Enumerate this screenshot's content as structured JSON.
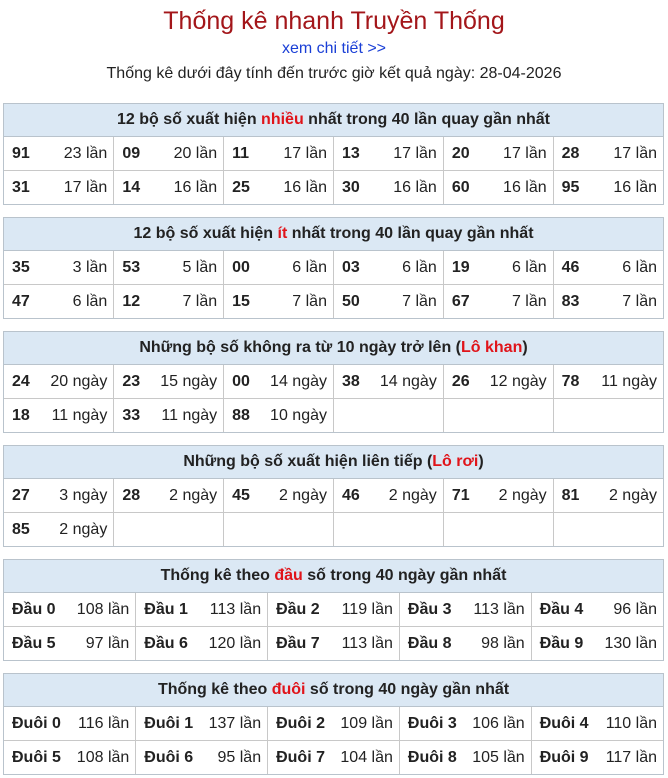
{
  "header": {
    "title": "Thống kê nhanh Truyền Thống",
    "link": "xem chi tiết >>",
    "subtitle": "Thống kê dưới đây tính đến trước giờ kết quả ngày: 28-04-2026"
  },
  "sections": [
    {
      "title": [
        "12 bộ số xuất hiện ",
        "nhiều",
        " nhất trong 40 lần quay gần nhất"
      ],
      "rows": [
        [
          [
            "91",
            "23 lần"
          ],
          [
            "09",
            "20 lần"
          ],
          [
            "11",
            "17 lần"
          ],
          [
            "13",
            "17 lần"
          ],
          [
            "20",
            "17 lần"
          ],
          [
            "28",
            "17 lần"
          ]
        ],
        [
          [
            "31",
            "17 lần"
          ],
          [
            "14",
            "16 lần"
          ],
          [
            "25",
            "16 lần"
          ],
          [
            "30",
            "16 lần"
          ],
          [
            "60",
            "16 lần"
          ],
          [
            "95",
            "16 lần"
          ]
        ]
      ]
    },
    {
      "title": [
        "12 bộ số xuất hiện ",
        "ít",
        " nhất trong 40 lần quay gần nhất"
      ],
      "rows": [
        [
          [
            "35",
            "3 lần"
          ],
          [
            "53",
            "5 lần"
          ],
          [
            "00",
            "6 lần"
          ],
          [
            "03",
            "6 lần"
          ],
          [
            "19",
            "6 lần"
          ],
          [
            "46",
            "6 lần"
          ]
        ],
        [
          [
            "47",
            "6 lần"
          ],
          [
            "12",
            "7 lần"
          ],
          [
            "15",
            "7 lần"
          ],
          [
            "50",
            "7 lần"
          ],
          [
            "67",
            "7 lần"
          ],
          [
            "83",
            "7 lần"
          ]
        ]
      ]
    },
    {
      "title": [
        "Những bộ số không ra từ 10 ngày trở lên (",
        "Lô khan",
        ")"
      ],
      "rows": [
        [
          [
            "24",
            "20 ngày"
          ],
          [
            "23",
            "15 ngày"
          ],
          [
            "00",
            "14 ngày"
          ],
          [
            "38",
            "14 ngày"
          ],
          [
            "26",
            "12 ngày"
          ],
          [
            "78",
            "11 ngày"
          ]
        ],
        [
          [
            "18",
            "11 ngày"
          ],
          [
            "33",
            "11 ngày"
          ],
          [
            "88",
            "10 ngày"
          ]
        ]
      ]
    },
    {
      "title": [
        "Những bộ số xuất hiện liên tiếp (",
        "Lô rơi",
        ")"
      ],
      "rows": [
        [
          [
            "27",
            "3 ngày"
          ],
          [
            "28",
            "2 ngày"
          ],
          [
            "45",
            "2 ngày"
          ],
          [
            "46",
            "2 ngày"
          ],
          [
            "71",
            "2 ngày"
          ],
          [
            "81",
            "2 ngày"
          ]
        ],
        [
          [
            "85",
            "2 ngày"
          ]
        ]
      ]
    },
    {
      "title": [
        "Thống kê theo ",
        "đầu",
        " số trong 40 ngày gần nhất"
      ],
      "rows": [
        [
          [
            "Đầu 0",
            "108 lần"
          ],
          [
            "Đầu 1",
            "113 lần"
          ],
          [
            "Đầu 2",
            "119 lần"
          ],
          [
            "Đầu 3",
            "113 lần"
          ],
          [
            "Đầu 4",
            "96 lần"
          ]
        ],
        [
          [
            "Đầu 5",
            "97 lần"
          ],
          [
            "Đầu 6",
            "120 lần"
          ],
          [
            "Đầu 7",
            "113 lần"
          ],
          [
            "Đầu 8",
            "98 lần"
          ],
          [
            "Đầu 9",
            "130 lần"
          ]
        ]
      ]
    },
    {
      "title": [
        "Thống kê theo ",
        "đuôi",
        " số trong 40 ngày gần nhất"
      ],
      "rows": [
        [
          [
            "Đuôi 0",
            "116 lần"
          ],
          [
            "Đuôi 1",
            "137 lần"
          ],
          [
            "Đuôi 2",
            "109 lần"
          ],
          [
            "Đuôi 3",
            "106 lần"
          ],
          [
            "Đuôi 4",
            "110 lần"
          ]
        ],
        [
          [
            "Đuôi 5",
            "108 lần"
          ],
          [
            "Đuôi 6",
            "95 lần"
          ],
          [
            "Đuôi 7",
            "104 lần"
          ],
          [
            "Đuôi 8",
            "105 lần"
          ],
          [
            "Đuôi 9",
            "117 lần"
          ]
        ]
      ]
    }
  ]
}
